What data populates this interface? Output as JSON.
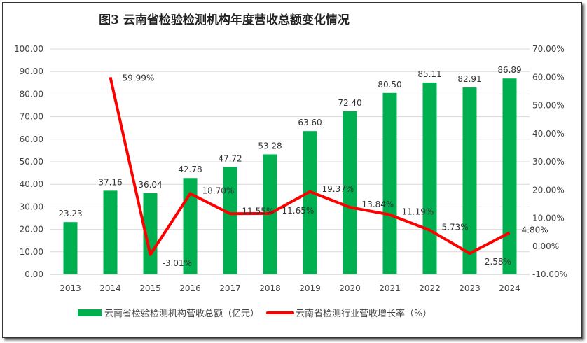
{
  "chart_data": {
    "type": "bar+line",
    "title": "图3  云南省检验检测机构年度营收总额变化情况",
    "categories": [
      "2013",
      "2014",
      "2015",
      "2016",
      "2017",
      "2018",
      "2019",
      "2020",
      "2021",
      "2022",
      "2023",
      "2024"
    ],
    "series": [
      {
        "name": "云南省检验检测机构营收总额（亿元）",
        "type": "bar",
        "axis": "left",
        "color": "#00b050",
        "values": [
          23.23,
          37.16,
          36.04,
          42.78,
          47.72,
          53.28,
          63.6,
          72.4,
          80.5,
          85.11,
          82.91,
          86.89
        ],
        "labels": [
          "23.23",
          "37.16",
          "36.04",
          "42.78",
          "47.72",
          "53.28",
          "63.60",
          "72.40",
          "80.50",
          "85.11",
          "82.91",
          "86.89"
        ]
      },
      {
        "name": "云南省检测行业营收增长率（%）",
        "type": "line",
        "axis": "right",
        "color": "#ff0000",
        "values": [
          null,
          59.99,
          -3.01,
          18.7,
          11.55,
          11.65,
          19.37,
          13.84,
          11.19,
          5.73,
          -2.58,
          4.8
        ],
        "labels": [
          null,
          "59.99%",
          "-3.01%",
          "18.70%",
          "11.55%",
          "11.65%",
          "19.37%",
          "13.84%",
          "11.19%",
          "5.73%",
          "-2.58%",
          "4.80%"
        ]
      }
    ],
    "left_axis": {
      "ylim": [
        0,
        100
      ],
      "ticks": [
        "0.00",
        "10.00",
        "20.00",
        "30.00",
        "40.00",
        "50.00",
        "60.00",
        "70.00",
        "80.00",
        "90.00",
        "100.00"
      ]
    },
    "right_axis": {
      "ylim": [
        -10,
        70
      ],
      "ticks": [
        "-10.00%",
        "0.00%",
        "10.00%",
        "20.00%",
        "30.00%",
        "40.00%",
        "50.00%",
        "60.00%",
        "70.00%"
      ]
    },
    "grid": true,
    "legend_position": "bottom"
  }
}
